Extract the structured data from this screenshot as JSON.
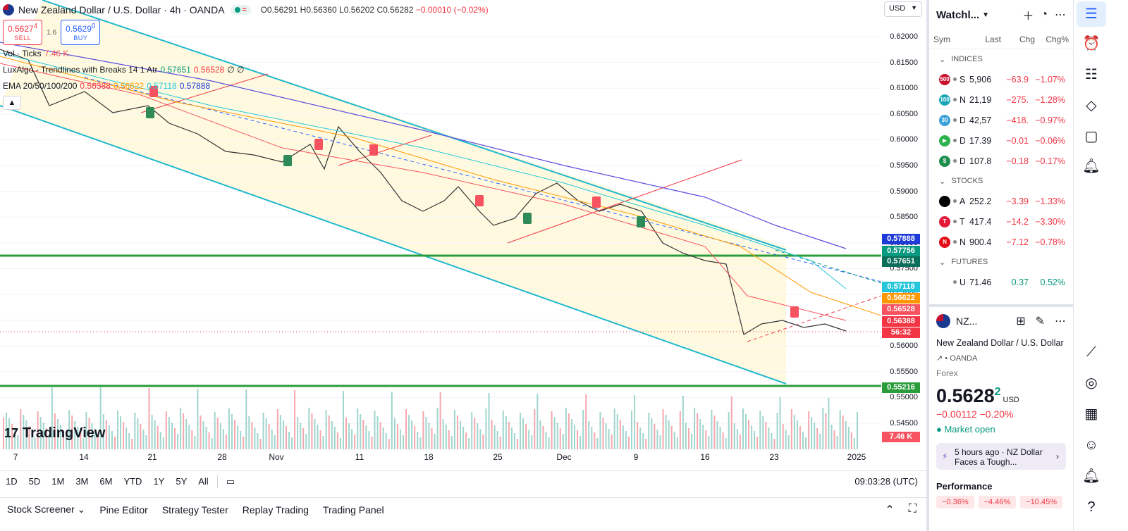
{
  "header": {
    "title": "New Zealand Dollar / U.S. Dollar · 4h · OANDA",
    "ohlc": {
      "o": "O0.56291",
      "h": "H0.56360",
      "l": "L0.56202",
      "c": "C0.56282",
      "chg": "−0.00010 (−0.02%)"
    },
    "pill": "≈"
  },
  "trade": {
    "sell_price": "0.5627",
    "sell_sup": "4",
    "sell_label": "SELL",
    "spread": "1.6",
    "buy_price": "0.5629",
    "buy_sup": "0",
    "buy_label": "BUY"
  },
  "indicators": {
    "vol": {
      "name": "Vol · Ticks",
      "value": "7.46 K"
    },
    "lux": {
      "name": "LuxAlgo - Trendlines with Breaks 14 1 Atr",
      "v1": "0.57651",
      "v2": "0.56528",
      "v3": "∅ ∅"
    },
    "ema": {
      "name": "EMA 20/50/100/200",
      "v1": "0.56388",
      "v2": "0.56622",
      "v3": "0.57118",
      "v4": "0.57888"
    }
  },
  "currency": "USD",
  "price_scale": [
    "0.62000",
    "0.61500",
    "0.61000",
    "0.60500",
    "0.60000",
    "0.59500",
    "0.59000",
    "0.58500",
    "0.58000",
    "0.57500",
    "0.57000",
    "0.56500",
    "0.56000",
    "0.55500",
    "0.55000",
    "0.54500"
  ],
  "price_tags": [
    {
      "text": "0.57888",
      "color": "#1e3ad8"
    },
    {
      "text": "0.57756",
      "color": "#089981"
    },
    {
      "text": "0.57651",
      "color": "#0b6e5a"
    },
    {
      "text": "0.57118",
      "color": "#26c6da"
    },
    {
      "text": "0.56622",
      "color": "#ff9800"
    },
    {
      "text": "0.56528",
      "color": "#f7525f"
    },
    {
      "text": "0.56388",
      "color": "#f23645"
    },
    {
      "text": "56:32",
      "color": "#f23645"
    },
    {
      "text": "0.55216",
      "color": "#2a9d3a"
    },
    {
      "text": "7.46 K",
      "color": "#f7525f"
    }
  ],
  "x_labels": [
    "7",
    "14",
    "21",
    "28",
    "Nov",
    "11",
    "18",
    "25",
    "Dec",
    "9",
    "16",
    "23",
    "2025"
  ],
  "logo": "TradingView",
  "ranges": [
    "1D",
    "5D",
    "1M",
    "3M",
    "6M",
    "YTD",
    "1Y",
    "5Y",
    "All"
  ],
  "clock": "09:03:28 (UTC)",
  "bottom_tabs": [
    "Stock Screener",
    "Pine Editor",
    "Strategy Tester",
    "Replay Trading",
    "Trading Panel"
  ],
  "watchlist": {
    "title": "Watchl...",
    "columns": [
      "Sym",
      "Last",
      "Chg",
      "Chg%"
    ],
    "sections": [
      {
        "name": "INDICES",
        "rows": [
          {
            "icon": "500",
            "color": "#c8102e",
            "sym": "S",
            "last": "5,906",
            "chg": "−63.9",
            "pct": "−1.07%"
          },
          {
            "icon": "100",
            "color": "#1aa6b7",
            "sym": "N",
            "last": "21,19",
            "chg": "−275.",
            "pct": "−1.28%"
          },
          {
            "icon": "30",
            "color": "#3aa0d8",
            "sym": "D",
            "last": "42,57",
            "chg": "−418.",
            "pct": "−0.97%"
          },
          {
            "icon": "▶",
            "color": "#2bb24c",
            "sym": "D",
            "last": "17.39",
            "chg": "−0.01",
            "pct": "−0.06%"
          },
          {
            "icon": "$",
            "color": "#1f8f4f",
            "sym": "DX",
            "last": "107.8",
            "chg": "−0.18",
            "pct": "−0.17%"
          }
        ]
      },
      {
        "name": "STOCKS",
        "rows": [
          {
            "icon": "",
            "color": "#000000",
            "sym": "A",
            "last": "252.2",
            "chg": "−3.39",
            "pct": "−1.33%"
          },
          {
            "icon": "T",
            "color": "#e31937",
            "sym": "T",
            "last": "417.4",
            "chg": "−14.2",
            "pct": "−3.30%"
          },
          {
            "icon": "N",
            "color": "#e50914",
            "sym": "N",
            "last": "900.4",
            "chg": "−7.12",
            "pct": "−0.78%"
          }
        ]
      },
      {
        "name": "FUTURES",
        "rows": [
          {
            "icon": "",
            "color": "#ffffff",
            "sym": "US",
            "last": "71.46",
            "chg": "0.37",
            "pct": "0.52%"
          }
        ]
      }
    ]
  },
  "detail": {
    "symbol": "NZ...",
    "name": "New Zealand Dollar / U.S. Dollar",
    "exchange": "• OANDA",
    "category": "Forex",
    "price": "0.5628",
    "price_sup": "2",
    "price_cur": "USD",
    "change": "−0.00112  −0.20%",
    "status": "Market open",
    "news": "5 hours ago · NZ Dollar Faces a Tough...",
    "perf_title": "Performance",
    "perf": [
      "−0.36%",
      "−4.46%",
      "−10.45%"
    ]
  }
}
